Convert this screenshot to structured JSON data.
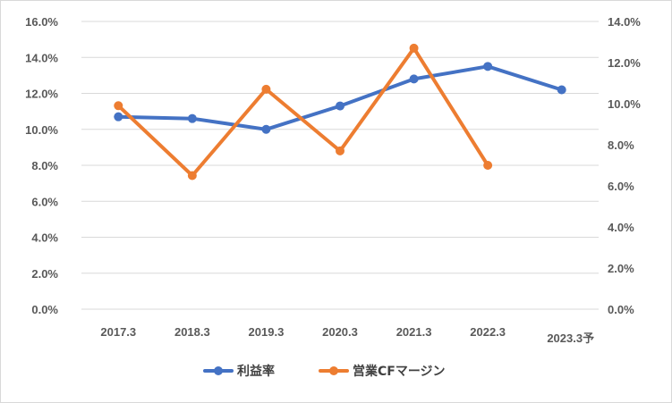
{
  "chart_data": {
    "type": "line",
    "categories": [
      "2017.3",
      "2018.3",
      "2019.3",
      "2020.3",
      "2021.3",
      "2022.3",
      "2023.3予"
    ],
    "y_left": {
      "min": 0,
      "max": 0.16,
      "step": 0.02,
      "format": "percent1"
    },
    "y_right": {
      "min": 0,
      "max": 0.14,
      "step": 0.02,
      "format": "percent1"
    },
    "grid": true,
    "legend_position": "bottom",
    "series": [
      {
        "name": "利益率",
        "axis": "left",
        "color": "#4472C4",
        "values": [
          0.107,
          0.106,
          0.1,
          0.113,
          0.128,
          0.135,
          0.122
        ]
      },
      {
        "name": "営業CFマージン",
        "axis": "right",
        "color": "#ED7D31",
        "values": [
          0.099,
          0.065,
          0.107,
          0.077,
          0.127,
          0.07,
          null
        ]
      }
    ]
  }
}
